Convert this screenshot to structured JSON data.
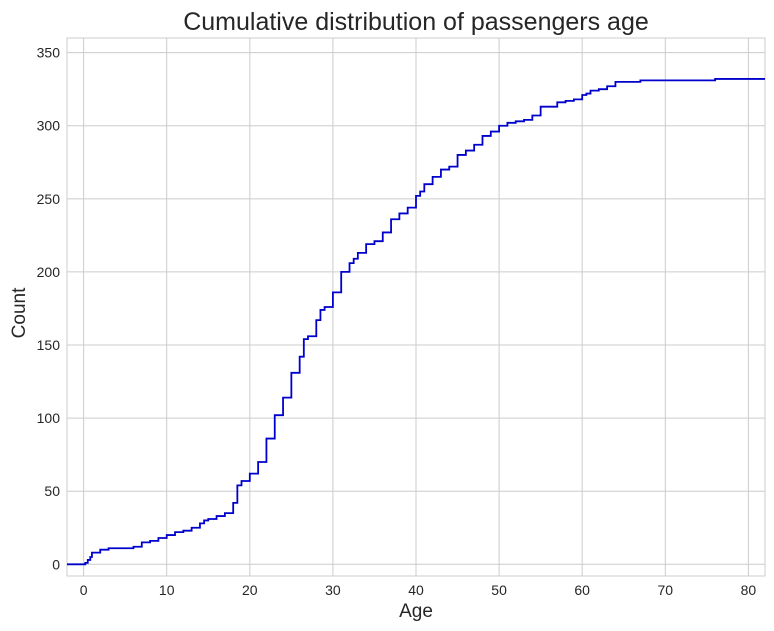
{
  "chart_data": {
    "type": "line",
    "title": "Cumulative distribution of passengers age",
    "xlabel": "Age",
    "ylabel": "Count",
    "xlim": [
      -2,
      82
    ],
    "ylim": [
      -8,
      360
    ],
    "xticks": [
      0,
      10,
      20,
      30,
      40,
      50,
      60,
      70,
      80
    ],
    "yticks": [
      0,
      50,
      100,
      150,
      200,
      250,
      300,
      350
    ],
    "grid": true,
    "series": [
      {
        "color": "#0000cc",
        "step": "post",
        "x": [
          -2,
          0.2,
          0.5,
          0.8,
          1,
          2,
          3,
          4,
          5,
          6,
          7,
          8,
          9,
          10,
          11,
          12,
          13,
          14,
          14.5,
          15,
          16,
          17,
          18,
          18.5,
          19,
          20,
          21,
          22,
          23,
          24,
          25,
          26,
          26.5,
          27,
          28,
          28.5,
          29,
          30,
          31,
          32,
          32.5,
          33,
          34,
          35,
          36,
          37,
          38,
          39,
          40,
          40.5,
          41,
          42,
          43,
          44,
          45,
          46,
          47,
          48,
          49,
          50,
          51,
          52,
          53,
          54,
          55,
          56,
          57,
          58,
          59,
          60,
          60.5,
          61,
          62,
          63,
          64,
          65,
          67,
          70,
          71,
          74,
          76,
          80,
          82
        ],
        "y": [
          0,
          1,
          3,
          5,
          8,
          10,
          11,
          11,
          11,
          12,
          15,
          16,
          18,
          20,
          22,
          23,
          25,
          28,
          30,
          31,
          33,
          35,
          42,
          54,
          57,
          62,
          70,
          86,
          102,
          114,
          131,
          142,
          154,
          156,
          167,
          174,
          176,
          186,
          200,
          206,
          209,
          213,
          219,
          221,
          227,
          236,
          240,
          244,
          252,
          255,
          260,
          265,
          270,
          272,
          280,
          283,
          287,
          293,
          296,
          300,
          302,
          303,
          304,
          307,
          313,
          313,
          316,
          317,
          318,
          321,
          322,
          324,
          325,
          327,
          330,
          330,
          331,
          331,
          331,
          331,
          332,
          332,
          332
        ]
      }
    ]
  }
}
